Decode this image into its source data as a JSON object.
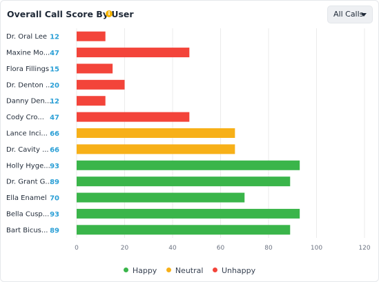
{
  "header": {
    "title": "Overall Call Score By User",
    "filter_label": "All Calls"
  },
  "colors": {
    "happy": "#3ab54a",
    "neutral": "#f7b018",
    "unhappy": "#f3443a",
    "value_label": "#2a9fd6",
    "grid": "#ebebeb"
  },
  "chart_data": {
    "type": "bar",
    "orientation": "horizontal",
    "title": "Overall Call Score By User",
    "xlim": [
      0,
      120
    ],
    "xticks": [
      0,
      20,
      40,
      60,
      80,
      100,
      120
    ],
    "grid": true,
    "legend_position": "bottom",
    "categories": [
      "Dr. Oral Lee",
      "Maxine Mo...",
      "Flora Fillings",
      "Dr. Denton ...",
      "Danny Den...",
      "Cody Cro...",
      "Lance Inci...",
      "Dr. Cavity ...",
      "Holly Hyge...",
      "Dr. Grant G...",
      "Ella Enamel",
      "Bella Cusp...",
      "Bart Bicus..."
    ],
    "values": [
      12,
      47,
      15,
      20,
      12,
      47,
      66,
      66,
      93,
      89,
      70,
      93,
      89
    ],
    "sentiment": [
      "unhappy",
      "unhappy",
      "unhappy",
      "unhappy",
      "unhappy",
      "unhappy",
      "neutral",
      "neutral",
      "happy",
      "happy",
      "happy",
      "happy",
      "happy"
    ],
    "legend": [
      {
        "key": "happy",
        "label": "Happy"
      },
      {
        "key": "neutral",
        "label": "Neutral"
      },
      {
        "key": "unhappy",
        "label": "Unhappy"
      }
    ]
  }
}
